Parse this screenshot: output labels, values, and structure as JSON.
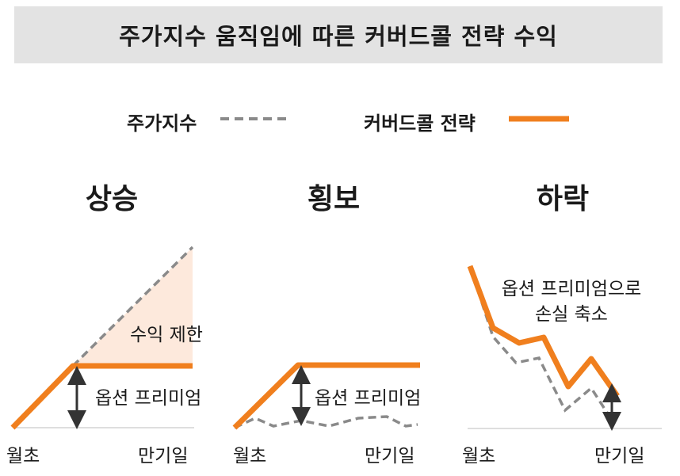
{
  "title": "주가지수 움직임에 따른 커버드콜 전략 수익",
  "legend": {
    "index_label": "주가지수",
    "strategy_label": "커버드콜 전략"
  },
  "colors": {
    "title_bg": "#e3e3e3",
    "strategy": "#f07f1e",
    "index": "#8a8a8a",
    "capped_area": "#fde9dc",
    "arrow": "#333333",
    "baseline": "#bdbdbd"
  },
  "panels": [
    {
      "title": "상승",
      "annotations": [
        "수익 제한",
        "옵션 프리미엄"
      ],
      "x_start": "월초",
      "x_end": "만기일"
    },
    {
      "title": "횡보",
      "annotations": [
        "옵션 프리미엄"
      ],
      "x_start": "월초",
      "x_end": "만기일"
    },
    {
      "title": "하락",
      "annotations": [
        "옵션 프리미엄으로",
        "손실 축소"
      ],
      "x_start": "월초",
      "x_end": "만기일"
    }
  ]
}
